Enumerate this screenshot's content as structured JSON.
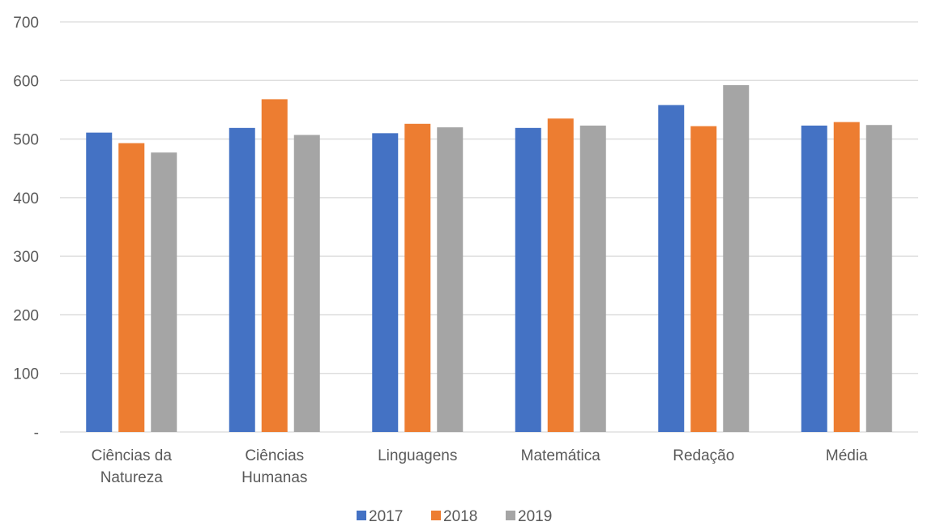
{
  "chart_data": {
    "type": "bar",
    "categories": [
      [
        "Ciências da",
        "Natureza"
      ],
      [
        "Ciências",
        "Humanas"
      ],
      [
        "Linguagens"
      ],
      [
        "Matemática"
      ],
      [
        "Redação"
      ],
      [
        "Média"
      ]
    ],
    "series": [
      {
        "name": "2017",
        "color": "#4472c4",
        "values": [
          511,
          519,
          510,
          519,
          558,
          523
        ]
      },
      {
        "name": "2018",
        "color": "#ed7d31",
        "values": [
          493,
          568,
          526,
          535,
          522,
          529
        ]
      },
      {
        "name": "2019",
        "color": "#a5a5a5",
        "values": [
          477,
          507,
          520,
          523,
          592,
          524
        ]
      }
    ],
    "yticks": [
      "-",
      "100",
      "200",
      "300",
      "400",
      "500",
      "600",
      "700"
    ],
    "ylim": [
      0,
      700
    ],
    "grid": true,
    "legend_position": "bottom"
  }
}
